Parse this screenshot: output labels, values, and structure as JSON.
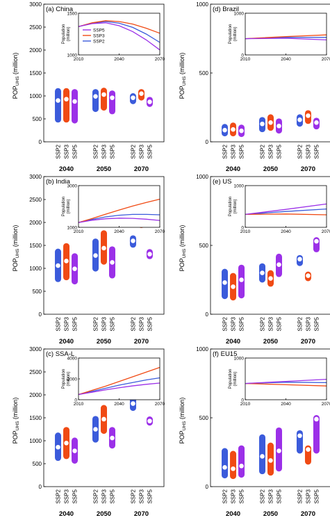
{
  "colors": {
    "SSP2": "#3b5bdb",
    "SSP3": "#f04a14",
    "SSP5": "#9b30e8"
  },
  "scenarios": [
    "SSP2",
    "SSP3",
    "SSP5"
  ],
  "years": [
    "2040",
    "2050",
    "2070"
  ],
  "y_axis_label": "POP",
  "y_axis_label_sub": "UHS",
  "y_axis_label_unit": "(million)",
  "inset_ylabel": [
    "Population",
    "(million)"
  ],
  "inset_xticks": [
    "2010",
    "2040",
    "2070"
  ],
  "chart_data": [
    {
      "type": "range-bar",
      "title": "(a) China",
      "ylim": [
        0,
        3000
      ],
      "yticks": [
        0,
        500,
        1000,
        1500,
        2000,
        2500,
        3000
      ],
      "groups": [
        {
          "year": "2040",
          "bars": [
            {
              "scenario": "SSP2",
              "low": 420,
              "high": 1170,
              "mid": 900
            },
            {
              "scenario": "SSP3",
              "low": 420,
              "high": 1170,
              "mid": 930
            },
            {
              "scenario": "SSP5",
              "low": 400,
              "high": 1150,
              "mid": 880
            }
          ]
        },
        {
          "year": "2050",
          "bars": [
            {
              "scenario": "SSP2",
              "low": 650,
              "high": 1150,
              "mid": 990
            },
            {
              "scenario": "SSP3",
              "low": 680,
              "high": 1180,
              "mid": 1030
            },
            {
              "scenario": "SSP5",
              "low": 600,
              "high": 1120,
              "mid": 960
            }
          ]
        },
        {
          "year": "2070",
          "bars": [
            {
              "scenario": "SSP2",
              "low": 820,
              "high": 1060,
              "mid": 960
            },
            {
              "scenario": "SSP3",
              "low": 900,
              "high": 1150,
              "mid": 1050
            },
            {
              "scenario": "SSP5",
              "low": 760,
              "high": 980,
              "mid": 870
            }
          ]
        }
      ],
      "inset": {
        "ylim": [
          1000,
          1500
        ],
        "yticks": [
          1000,
          1500
        ],
        "legend": [
          "SSP5",
          "SSP3",
          "SSP2"
        ],
        "series": [
          {
            "name": "SSP2",
            "x": [
              2010,
              2020,
              2030,
              2040,
              2050,
              2060,
              2070
            ],
            "y": [
              1340,
              1380,
              1400,
              1380,
              1330,
              1250,
              1150
            ]
          },
          {
            "name": "SSP3",
            "x": [
              2010,
              2020,
              2030,
              2040,
              2050,
              2060,
              2070
            ],
            "y": [
              1340,
              1385,
              1410,
              1400,
              1370,
              1320,
              1260
            ]
          },
          {
            "name": "SSP5",
            "x": [
              2010,
              2020,
              2030,
              2040,
              2050,
              2060,
              2070
            ],
            "y": [
              1340,
              1375,
              1385,
              1350,
              1280,
              1180,
              1060
            ]
          }
        ]
      }
    },
    {
      "type": "range-bar",
      "title": "(b) India",
      "ylim": [
        0,
        3000
      ],
      "yticks": [
        0,
        500,
        1000,
        1500,
        2000,
        2500,
        3000
      ],
      "groups": [
        {
          "year": "2040",
          "bars": [
            {
              "scenario": "SSP2",
              "low": 700,
              "high": 1430,
              "mid": 1060
            },
            {
              "scenario": "SSP3",
              "low": 740,
              "high": 1550,
              "mid": 1160
            },
            {
              "scenario": "SSP5",
              "low": 650,
              "high": 1330,
              "mid": 990
            }
          ]
        },
        {
          "year": "2050",
          "bars": [
            {
              "scenario": "SSP2",
              "low": 930,
              "high": 1650,
              "mid": 1280
            },
            {
              "scenario": "SSP3",
              "low": 1080,
              "high": 1830,
              "mid": 1440
            },
            {
              "scenario": "SSP5",
              "low": 780,
              "high": 1480,
              "mid": 1130
            }
          ]
        },
        {
          "year": "2070",
          "bars": [
            {
              "scenario": "SSP2",
              "low": 1450,
              "high": 1720,
              "mid": 1600
            },
            {
              "scenario": "SSP3",
              "low": 1880,
              "high": 2200,
              "mid": 2040
            },
            {
              "scenario": "SSP5",
              "low": 1200,
              "high": 1420,
              "mid": 1310
            }
          ]
        }
      ],
      "inset": {
        "ylim": [
          1000,
          3000
        ],
        "yticks": [
          1000,
          3000
        ],
        "legend": [],
        "series": [
          {
            "name": "SSP2",
            "x": [
              2010,
              2020,
              2030,
              2040,
              2050,
              2060,
              2070
            ],
            "y": [
              1230,
              1380,
              1500,
              1580,
              1620,
              1620,
              1600
            ]
          },
          {
            "name": "SSP3",
            "x": [
              2010,
              2020,
              2030,
              2040,
              2050,
              2060,
              2070
            ],
            "y": [
              1230,
              1420,
              1630,
              1830,
              2020,
              2190,
              2350
            ]
          },
          {
            "name": "SSP5",
            "x": [
              2010,
              2020,
              2030,
              2040,
              2050,
              2060,
              2070
            ],
            "y": [
              1230,
              1340,
              1410,
              1440,
              1430,
              1390,
              1330
            ]
          }
        ]
      }
    },
    {
      "type": "range-bar",
      "title": "(c) SSA-L",
      "ylim": [
        0,
        3000
      ],
      "yticks": [
        0,
        500,
        1000,
        1500,
        2000,
        2500,
        3000
      ],
      "groups": [
        {
          "year": "2040",
          "bars": [
            {
              "scenario": "SSP2",
              "low": 560,
              "high": 1180,
              "mid": 860
            },
            {
              "scenario": "SSP3",
              "low": 600,
              "high": 1300,
              "mid": 950
            },
            {
              "scenario": "SSP5",
              "low": 500,
              "high": 1070,
              "mid": 780
            }
          ]
        },
        {
          "year": "2050",
          "bars": [
            {
              "scenario": "SSP2",
              "low": 960,
              "high": 1540,
              "mid": 1250
            },
            {
              "scenario": "SSP3",
              "low": 1150,
              "high": 1780,
              "mid": 1470
            },
            {
              "scenario": "SSP5",
              "low": 830,
              "high": 1300,
              "mid": 1060
            }
          ]
        },
        {
          "year": "2070",
          "bars": [
            {
              "scenario": "SSP2",
              "low": 1650,
              "high": 1970,
              "mid": 1810
            },
            {
              "scenario": "SSP3",
              "low": 2070,
              "high": 2600,
              "mid": 2340
            },
            {
              "scenario": "SSP5",
              "low": 1330,
              "high": 1530,
              "mid": 1430
            }
          ]
        }
      ],
      "inset": {
        "ylim": [
          0,
          4000
        ],
        "yticks": [
          0,
          2000,
          4000
        ],
        "legend": [],
        "series": [
          {
            "name": "SSP2",
            "x": [
              2010,
              2020,
              2030,
              2040,
              2050,
              2060,
              2070
            ],
            "y": [
              500,
              800,
              1100,
              1400,
              1650,
              1900,
              2100
            ]
          },
          {
            "name": "SSP3",
            "x": [
              2010,
              2020,
              2030,
              2040,
              2050,
              2060,
              2070
            ],
            "y": [
              500,
              900,
              1300,
              1750,
              2200,
              2650,
              3100
            ]
          },
          {
            "name": "SSP5",
            "x": [
              2010,
              2020,
              2030,
              2040,
              2050,
              2060,
              2070
            ],
            "y": [
              500,
              720,
              950,
              1150,
              1330,
              1480,
              1600
            ]
          }
        ]
      }
    },
    {
      "type": "range-bar",
      "title": "(d) Brazil",
      "ylim": [
        0,
        1000
      ],
      "yticks": [
        0,
        500,
        1000
      ],
      "groups": [
        {
          "year": "2040",
          "bars": [
            {
              "scenario": "SSP2",
              "low": 40,
              "high": 130,
              "mid": 85
            },
            {
              "scenario": "SSP3",
              "low": 40,
              "high": 140,
              "mid": 90
            },
            {
              "scenario": "SSP5",
              "low": 35,
              "high": 125,
              "mid": 80
            }
          ]
        },
        {
          "year": "2050",
          "bars": [
            {
              "scenario": "SSP2",
              "low": 70,
              "high": 180,
              "mid": 130
            },
            {
              "scenario": "SSP3",
              "low": 80,
              "high": 200,
              "mid": 140
            },
            {
              "scenario": "SSP5",
              "low": 60,
              "high": 170,
              "mid": 115
            }
          ]
        },
        {
          "year": "2070",
          "bars": [
            {
              "scenario": "SSP2",
              "low": 110,
              "high": 200,
              "mid": 160
            },
            {
              "scenario": "SSP3",
              "low": 130,
              "high": 230,
              "mid": 190
            },
            {
              "scenario": "SSP5",
              "low": 90,
              "high": 175,
              "mid": 140
            }
          ]
        }
      ],
      "inset": {
        "ylim": [
          0,
          1000
        ],
        "yticks": [
          0,
          1000
        ],
        "legend": [],
        "series": [
          {
            "name": "SSP2",
            "x": [
              2010,
              2040,
              2070
            ],
            "y": [
              390,
              420,
              420
            ]
          },
          {
            "name": "SSP3",
            "x": [
              2010,
              2040,
              2070
            ],
            "y": [
              390,
              440,
              480
            ]
          },
          {
            "name": "SSP5",
            "x": [
              2010,
              2040,
              2070
            ],
            "y": [
              390,
              400,
              360
            ]
          }
        ]
      }
    },
    {
      "type": "range-bar",
      "title": "(e) US",
      "ylim": [
        0,
        1000
      ],
      "yticks": [
        0,
        500,
        1000
      ],
      "groups": [
        {
          "year": "2040",
          "bars": [
            {
              "scenario": "SSP2",
              "low": 110,
              "high": 330,
              "mid": 230
            },
            {
              "scenario": "SSP3",
              "low": 100,
              "high": 300,
              "mid": 200
            },
            {
              "scenario": "SSP5",
              "low": 115,
              "high": 360,
              "mid": 250
            }
          ]
        },
        {
          "year": "2050",
          "bars": [
            {
              "scenario": "SSP2",
              "low": 230,
              "high": 370,
              "mid": 300
            },
            {
              "scenario": "SSP3",
              "low": 200,
              "high": 320,
              "mid": 260
            },
            {
              "scenario": "SSP5",
              "low": 270,
              "high": 440,
              "mid": 360
            }
          ]
        },
        {
          "year": "2070",
          "bars": [
            {
              "scenario": "SSP2",
              "low": 350,
              "high": 430,
              "mid": 400
            },
            {
              "scenario": "SSP3",
              "low": 240,
              "high": 310,
              "mid": 280
            },
            {
              "scenario": "SSP5",
              "low": 450,
              "high": 560,
              "mid": 530
            }
          ]
        }
      ],
      "inset": {
        "ylim": [
          0,
          1000
        ],
        "yticks": [
          0,
          1000
        ],
        "legend": [],
        "series": [
          {
            "name": "SSP2",
            "x": [
              2010,
              2040,
              2070
            ],
            "y": [
              310,
              380,
              440
            ]
          },
          {
            "name": "SSP3",
            "x": [
              2010,
              2040,
              2070
            ],
            "y": [
              310,
              320,
              300
            ]
          },
          {
            "name": "SSP5",
            "x": [
              2010,
              2040,
              2070
            ],
            "y": [
              310,
              430,
              560
            ]
          }
        ]
      }
    },
    {
      "type": "range-bar",
      "title": "(f) EU15",
      "ylim": [
        0,
        1000
      ],
      "yticks": [
        0,
        500,
        1000
      ],
      "groups": [
        {
          "year": "2040",
          "bars": [
            {
              "scenario": "SSP2",
              "low": 60,
              "high": 280,
              "mid": 140
            },
            {
              "scenario": "SSP3",
              "low": 55,
              "high": 260,
              "mid": 130
            },
            {
              "scenario": "SSP5",
              "low": 65,
              "high": 300,
              "mid": 150
            }
          ]
        },
        {
          "year": "2050",
          "bars": [
            {
              "scenario": "SSP2",
              "low": 90,
              "high": 380,
              "mid": 220
            },
            {
              "scenario": "SSP3",
              "low": 80,
              "high": 320,
              "mid": 190
            },
            {
              "scenario": "SSP5",
              "low": 110,
              "high": 430,
              "mid": 260
            }
          ]
        },
        {
          "year": "2070",
          "bars": [
            {
              "scenario": "SSP2",
              "low": 240,
              "high": 410,
              "mid": 370
            },
            {
              "scenario": "SSP3",
              "low": 160,
              "high": 300,
              "mid": 270
            },
            {
              "scenario": "SSP5",
              "low": 240,
              "high": 520,
              "mid": 490
            }
          ]
        }
      ],
      "inset": {
        "ylim": [
          0,
          1000
        ],
        "yticks": [
          0,
          1000
        ],
        "legend": [],
        "series": [
          {
            "name": "SSP2",
            "x": [
              2010,
              2040,
              2070
            ],
            "y": [
              390,
              420,
              410
            ]
          },
          {
            "name": "SSP3",
            "x": [
              2010,
              2040,
              2070
            ],
            "y": [
              390,
              360,
              330
            ]
          },
          {
            "name": "SSP5",
            "x": [
              2010,
              2040,
              2070
            ],
            "y": [
              390,
              440,
              490
            ]
          }
        ]
      }
    }
  ]
}
